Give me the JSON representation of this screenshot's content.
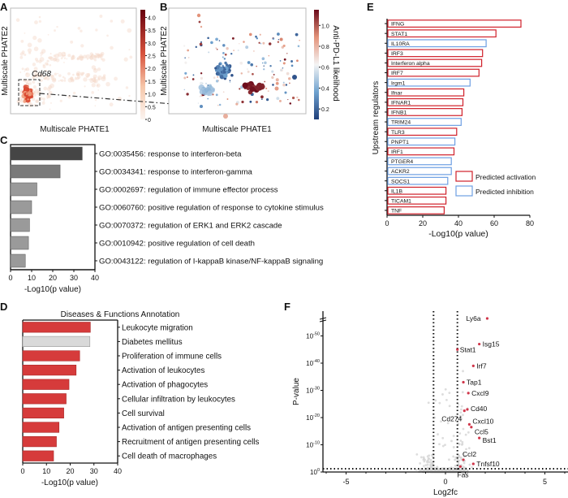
{
  "panel_labels": [
    "A",
    "B",
    "C",
    "D",
    "E",
    "F"
  ],
  "colors": {
    "go_bar_top": "#454545",
    "go_bar_second": "#7a7a7a",
    "go_bar_rest": "#9a9a9a",
    "disease_red": "#d63b3b",
    "disease_grey": "#d9d9d9",
    "activation": "#d0202a",
    "inhibition": "#6d9fe3",
    "volcano_highlight": "#d0364a",
    "volcano_background": "#d4d4d4"
  },
  "chart_data": [
    {
      "id": "A",
      "type": "scatter",
      "xlabel": "Multiscale PHATE1",
      "ylabel": "Multiscale PHATE2",
      "annotation": "Cd68",
      "colorbar": {
        "min": 0,
        "max": 4.3,
        "ticks": [
          0,
          0.5,
          1.0,
          1.5,
          2.0,
          2.5,
          3.0,
          3.5,
          4.0
        ],
        "tick_labels": [
          "0",
          "0.5",
          "1.0",
          "1.5",
          "2.0",
          "2.5",
          "3.0",
          "3.5",
          "4.0"
        ]
      }
    },
    {
      "id": "B",
      "type": "scatter",
      "xlabel": "Multiscale PHATE1",
      "ylabel": "Multiscale PHATE2",
      "colorbar": {
        "label": "Anti-PD-L1 likelihood",
        "min": 0.1,
        "max": 1.15,
        "ticks": [
          0.2,
          0.4,
          0.6,
          0.8,
          1.0
        ],
        "tick_labels": [
          "0.2",
          "0.4",
          "0.6",
          "0.8",
          "1.0"
        ]
      }
    },
    {
      "id": "C",
      "type": "bar",
      "orientation": "horizontal",
      "categories": [
        "GO:0035456: response to interferon-beta",
        "GO:0034341: response to interferon-gamma",
        "GO:0002697: regulation of immune effector process",
        "GO:0060760: positive regulation of response to cytokine stimulus",
        "GO:0070372: regulation of ERK1 and ERK2 cascade",
        "GO:0010942: positive regulation of cell death",
        "GO:0043122: regulation of I-kappaB kinase/NF-kappaB signaling"
      ],
      "values": [
        34,
        23.5,
        12.5,
        10,
        9,
        8.5,
        7
      ],
      "xlabel": "-Log10(p value)",
      "xlim": [
        0,
        40
      ],
      "xticks": [
        "0",
        "10",
        "20",
        "30",
        "40"
      ]
    },
    {
      "id": "D",
      "type": "bar",
      "orientation": "horizontal",
      "title": "Diseases & Functions Annotation",
      "categories": [
        "Leukocyte migration",
        "Diabetes mellitus",
        "Proliferation of immune cells",
        "Activation of leukocytes",
        "Activation of phagocytes",
        "Cellular infiltration by leukocytes",
        "Cell survival",
        "Activation of antigen presenting cells",
        "Recruitment of antigen presenting cells",
        "Cell death of macrophages"
      ],
      "values": [
        28.5,
        28.3,
        24,
        22.5,
        19.5,
        18.3,
        17.3,
        15.3,
        14.2,
        13
      ],
      "highlight": [
        true,
        false,
        true,
        true,
        true,
        true,
        true,
        true,
        true,
        true
      ],
      "xlabel": "-Log10(p value)",
      "xlim": [
        0,
        40
      ],
      "xticks": [
        "0",
        "10",
        "20",
        "30",
        "40"
      ]
    },
    {
      "id": "E",
      "type": "bar",
      "orientation": "horizontal",
      "categories": [
        "IFNG",
        "STAT1",
        "IL10RA",
        "IRF3",
        "Interferon alpha",
        "IRF7",
        "Irgm1",
        "Ifnar",
        "IFNAR1",
        "IFNB1",
        "TRIM24",
        "TLR3",
        "PNPT1",
        "IRF1",
        "PTGER4",
        "ACKR2",
        "SOCS1",
        "IL1B",
        "TICAM1",
        "TNF"
      ],
      "values": [
        75,
        61,
        55.5,
        53.5,
        53,
        51.5,
        46.5,
        43,
        42.5,
        42,
        41.5,
        39,
        38,
        37.5,
        36,
        36,
        34,
        33,
        33,
        32
      ],
      "prediction": [
        "activation",
        "activation",
        "inhibition",
        "activation",
        "activation",
        "activation",
        "inhibition",
        "activation",
        "activation",
        "activation",
        "inhibition",
        "activation",
        "inhibition",
        "activation",
        "inhibition",
        "inhibition",
        "inhibition",
        "activation",
        "activation",
        "activation"
      ],
      "legend": {
        "activation": "Predicted activation",
        "inhibition": "Predicted inhibition",
        "placement": "lower-right"
      },
      "xlabel": "-Log10(p value)",
      "ylabel": "Upstream regulators",
      "xlim": [
        0,
        80
      ],
      "xticks": [
        "0",
        "20",
        "40",
        "60",
        "80"
      ]
    },
    {
      "id": "F",
      "type": "scatter",
      "subtype": "volcano",
      "xlabel": "Log2fc",
      "ylabel": "P-value",
      "xlim": [
        -6.1,
        6.2
      ],
      "xticks": [
        "-5",
        "0",
        "5"
      ],
      "ytick_labels": [
        {
          "base": "10",
          "exp": "0"
        },
        {
          "base": "10",
          "exp": "-10"
        },
        {
          "base": "10",
          "exp": "-20"
        },
        {
          "base": "10",
          "exp": "-30"
        },
        {
          "base": "10",
          "exp": "-40"
        },
        {
          "base": "10",
          "exp": "-50"
        }
      ],
      "thresholds": {
        "log2fc": [
          -0.6,
          0.6
        ],
        "neg_log10_p": 0
      },
      "points": [
        {
          "label": "Ly6a",
          "log2fc": 2.1,
          "neg_log10_p": 57
        },
        {
          "label": "Isg15",
          "log2fc": 1.7,
          "neg_log10_p": 47
        },
        {
          "label": "Stat1",
          "log2fc": 0.6,
          "neg_log10_p": 45
        },
        {
          "label": "Irf7",
          "log2fc": 1.4,
          "neg_log10_p": 39
        },
        {
          "label": "Tap1",
          "log2fc": 0.9,
          "neg_log10_p": 33
        },
        {
          "label": "Cxcl9",
          "log2fc": 1.15,
          "neg_log10_p": 29
        },
        {
          "label": "Cd40",
          "log2fc": 1.1,
          "neg_log10_p": 23
        },
        {
          "label": "Cd274",
          "log2fc": 0.95,
          "neg_log10_p": 22.5
        },
        {
          "label": "Cxcl10",
          "log2fc": 1.2,
          "neg_log10_p": 17.5
        },
        {
          "label": "Ccl5",
          "log2fc": 1.3,
          "neg_log10_p": 16.5
        },
        {
          "label": "Bst1",
          "log2fc": 1.7,
          "neg_log10_p": 12.5
        },
        {
          "label": "Ccl2",
          "log2fc": 0.9,
          "neg_log10_p": 4.5
        },
        {
          "label": "Tnfsf10",
          "log2fc": 1.4,
          "neg_log10_p": 3
        },
        {
          "label": "Fas",
          "log2fc": 0.75,
          "neg_log10_p": 2
        }
      ]
    }
  ]
}
